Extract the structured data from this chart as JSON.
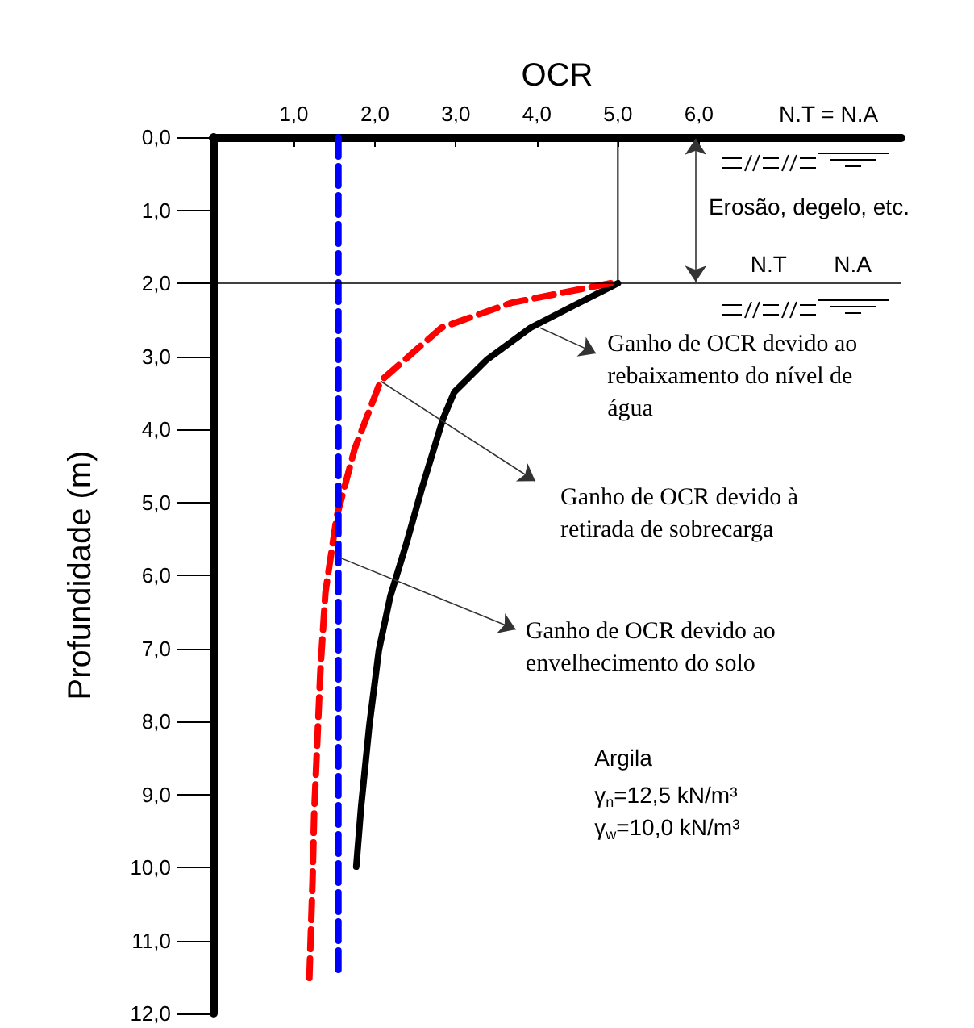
{
  "chart_data": {
    "type": "line",
    "xlabel": "OCR",
    "ylabel": "Profundidade (m)",
    "xlim": [
      0,
      8.5
    ],
    "ylim": [
      12,
      0
    ],
    "xticks": [
      {
        "value": 1,
        "label": "1,0"
      },
      {
        "value": 2,
        "label": "2,0"
      },
      {
        "value": 3,
        "label": "3,0"
      },
      {
        "value": 4,
        "label": "4,0"
      },
      {
        "value": 5,
        "label": "5,0"
      },
      {
        "value": 6,
        "label": "6,0"
      }
    ],
    "yticks": [
      {
        "value": 0,
        "label": "0,0"
      },
      {
        "value": 1,
        "label": "1,0"
      },
      {
        "value": 2,
        "label": "2,0"
      },
      {
        "value": 3,
        "label": "3,0"
      },
      {
        "value": 4,
        "label": "4,0"
      },
      {
        "value": 5,
        "label": "5,0"
      },
      {
        "value": 6,
        "label": "6,0"
      },
      {
        "value": 7,
        "label": "7,0"
      },
      {
        "value": 8,
        "label": "8,0"
      },
      {
        "value": 9,
        "label": "9,0"
      },
      {
        "value": 10,
        "label": "10,0"
      },
      {
        "value": 11,
        "label": "11,0"
      },
      {
        "value": 12,
        "label": "12,0"
      }
    ],
    "series": [
      {
        "color": "#000000",
        "line_style": "solid",
        "x": [
          5.0,
          4.43,
          3.92,
          3.38,
          2.98,
          2.84,
          2.58,
          2.39,
          2.19,
          2.05,
          1.93,
          1.83,
          1.77
        ],
        "values": [
          2.0,
          2.32,
          2.61,
          3.05,
          3.49,
          3.86,
          4.81,
          5.56,
          6.29,
          7.02,
          8.07,
          9.17,
          9.99
        ]
      },
      {
        "color": "#ff0000",
        "line_style": "dashed",
        "x": [
          4.91,
          3.68,
          2.82,
          2.07,
          1.75,
          1.53,
          1.39,
          1.33,
          1.29,
          1.25,
          1.23,
          1.19
        ],
        "values": [
          2.0,
          2.27,
          2.61,
          3.34,
          4.27,
          5.19,
          6.23,
          7.25,
          8.25,
          9.28,
          10.2,
          11.56
        ]
      },
      {
        "color": "#0000ff",
        "line_style": "dashed",
        "x": [
          1.55,
          1.55
        ],
        "values": [
          0,
          11.53
        ]
      },
      {
        "color": "#000000",
        "line_style": "solid",
        "x": [
          5.0,
          5.0
        ],
        "values": [
          0,
          2.0
        ]
      }
    ],
    "ref_lines": [
      {
        "axis": "y",
        "value": 2,
        "color": "#000000"
      }
    ],
    "annotations": [
      "N.T = N.A",
      "Erosão, degelo, etc.",
      "N.T",
      "N.A",
      "Ganho de OCR devido ao\nrebaixamento do nível de\nágua",
      "Ganho de OCR devido à\nretirada de sobrecarga",
      "Ganho de OCR devido ao\nenvelhecimento do solo",
      "Argila",
      "γ$_{n}$=12,5 kN/m³",
      "γ$_{w}$=10,0 kN/m³"
    ],
    "grid": false,
    "marker": "none"
  }
}
